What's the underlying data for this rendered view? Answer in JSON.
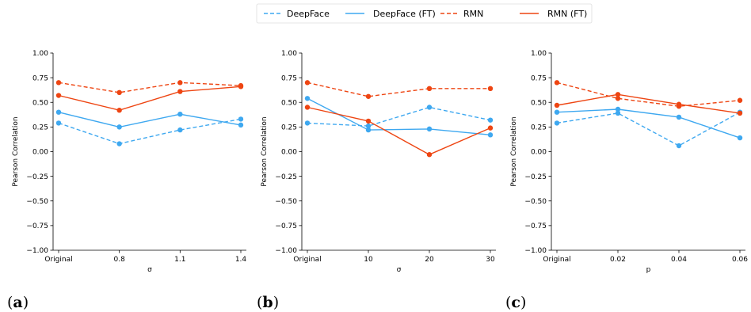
{
  "legend": {
    "entries": [
      {
        "label": "DeepFace",
        "color": "#3ea8f0",
        "dashed": true
      },
      {
        "label": "DeepFace (FT)",
        "color": "#3ea8f0",
        "dashed": false
      },
      {
        "label": "RMN",
        "color": "#ee4512",
        "dashed": true
      },
      {
        "label": "RMN (FT)",
        "color": "#ee4512",
        "dashed": false
      }
    ]
  },
  "chart_data": [
    {
      "type": "line",
      "panel_label": "a",
      "categories": [
        "Original",
        "0.8",
        "1.1",
        "1.4"
      ],
      "xlabel": "σ",
      "ylabel": "Pearson Correlation",
      "ylim": [
        -1.0,
        1.0
      ],
      "yticks": [
        "1.00",
        "0.75",
        "0.50",
        "0.25",
        "0.00",
        "−0.25",
        "−0.50",
        "−0.75",
        "−1.00"
      ],
      "grid": false,
      "series": [
        {
          "name": "DeepFace",
          "values": [
            0.29,
            0.08,
            0.22,
            0.33
          ]
        },
        {
          "name": "DeepFace (FT)",
          "values": [
            0.4,
            0.25,
            0.38,
            0.27
          ]
        },
        {
          "name": "RMN",
          "values": [
            0.7,
            0.6,
            0.7,
            0.67
          ]
        },
        {
          "name": "RMN (FT)",
          "values": [
            0.57,
            0.42,
            0.61,
            0.66
          ]
        }
      ]
    },
    {
      "type": "line",
      "panel_label": "b",
      "categories": [
        "Original",
        "10",
        "20",
        "30"
      ],
      "xlabel": "σ",
      "ylabel": "Pearson Correlation",
      "ylim": [
        -1.0,
        1.0
      ],
      "yticks": [
        "1.00",
        "0.75",
        "0.50",
        "0.25",
        "0.00",
        "−0.25",
        "−0.50",
        "−0.75",
        "−1.00"
      ],
      "grid": false,
      "series": [
        {
          "name": "DeepFace",
          "values": [
            0.29,
            0.26,
            0.45,
            0.32
          ]
        },
        {
          "name": "DeepFace (FT)",
          "values": [
            0.54,
            0.22,
            0.23,
            0.17
          ]
        },
        {
          "name": "RMN",
          "values": [
            0.7,
            0.56,
            0.64,
            0.64
          ]
        },
        {
          "name": "RMN (FT)",
          "values": [
            0.45,
            0.31,
            -0.03,
            0.24
          ]
        }
      ]
    },
    {
      "type": "line",
      "panel_label": "c",
      "categories": [
        "Original",
        "0.02",
        "0.04",
        "0.06"
      ],
      "xlabel": "p",
      "ylabel": "Pearson Correlation",
      "ylim": [
        -1.0,
        1.0
      ],
      "yticks": [
        "1.00",
        "0.75",
        "0.50",
        "0.25",
        "0.00",
        "−0.25",
        "−0.50",
        "−0.75",
        "−1.00"
      ],
      "grid": false,
      "series": [
        {
          "name": "DeepFace",
          "values": [
            0.29,
            0.39,
            0.06,
            0.4
          ]
        },
        {
          "name": "DeepFace (FT)",
          "values": [
            0.4,
            0.43,
            0.35,
            0.14
          ]
        },
        {
          "name": "RMN",
          "values": [
            0.7,
            0.54,
            0.46,
            0.52
          ]
        },
        {
          "name": "RMN (FT)",
          "values": [
            0.47,
            0.58,
            0.48,
            0.39
          ]
        }
      ]
    }
  ]
}
